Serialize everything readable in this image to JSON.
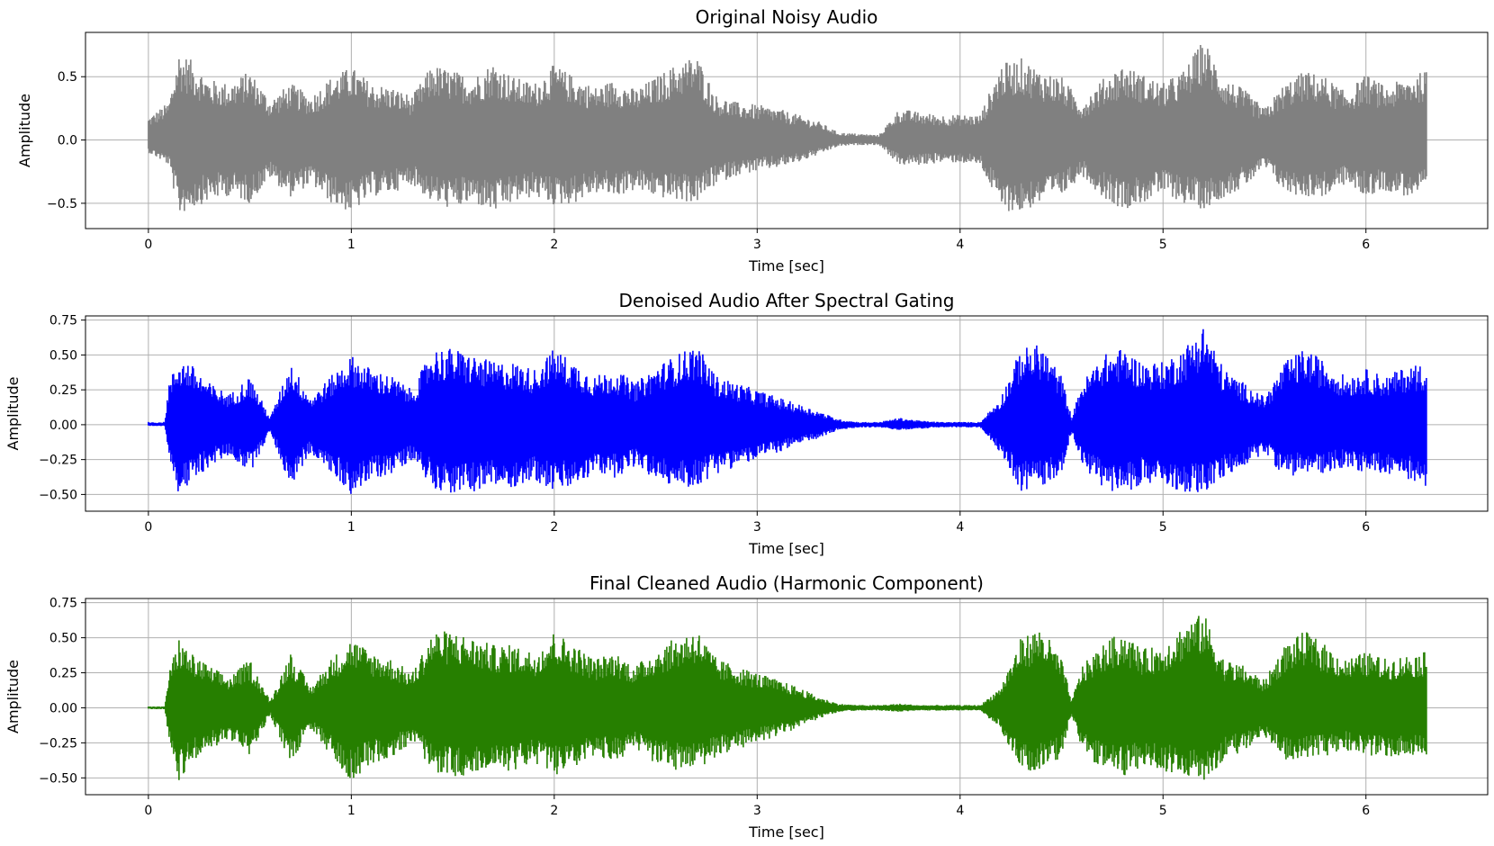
{
  "chart_data": [
    {
      "type": "line",
      "title": "Original Noisy Audio",
      "xlabel": "Time [sec]",
      "ylabel": "Amplitude",
      "xlim": [
        -0.31,
        6.6
      ],
      "ylim": [
        -0.7,
        0.85
      ],
      "xticks": [
        0,
        1,
        2,
        3,
        4,
        5,
        6
      ],
      "yticks": [
        -0.5,
        0.0,
        0.5
      ],
      "ytick_labels": [
        "−0.5",
        "0.0",
        "0.5"
      ],
      "grid": true,
      "color": "#808080",
      "series": [
        {
          "x": [
            0.0,
            0.1,
            0.15,
            0.2,
            0.3,
            0.4,
            0.5,
            0.6,
            0.7,
            0.8,
            0.9,
            1.0,
            1.1,
            1.2,
            1.3,
            1.4,
            1.5,
            1.6,
            1.7,
            1.8,
            1.9,
            2.0,
            2.1,
            2.2,
            2.3,
            2.4,
            2.5,
            2.6,
            2.7,
            2.8,
            2.9,
            3.0,
            3.1,
            3.2,
            3.3,
            3.4,
            3.5,
            3.6,
            3.7,
            3.8,
            3.9,
            4.0,
            4.1,
            4.2,
            4.3,
            4.4,
            4.5,
            4.6,
            4.7,
            4.8,
            4.9,
            5.0,
            5.1,
            5.2,
            5.3,
            5.4,
            5.5,
            5.6,
            5.7,
            5.8,
            5.9,
            6.0,
            6.1,
            6.2,
            6.3
          ],
          "upper": [
            0.18,
            0.3,
            0.7,
            0.65,
            0.48,
            0.45,
            0.55,
            0.32,
            0.45,
            0.35,
            0.5,
            0.58,
            0.45,
            0.42,
            0.35,
            0.6,
            0.55,
            0.5,
            0.62,
            0.5,
            0.45,
            0.6,
            0.5,
            0.42,
            0.48,
            0.4,
            0.5,
            0.6,
            0.68,
            0.35,
            0.3,
            0.28,
            0.25,
            0.2,
            0.15,
            0.06,
            0.05,
            0.04,
            0.25,
            0.22,
            0.2,
            0.2,
            0.2,
            0.6,
            0.65,
            0.55,
            0.5,
            0.3,
            0.48,
            0.6,
            0.52,
            0.45,
            0.55,
            0.8,
            0.5,
            0.4,
            0.25,
            0.45,
            0.55,
            0.5,
            0.38,
            0.52,
            0.42,
            0.5,
            0.55
          ],
          "lower": [
            -0.1,
            -0.2,
            -0.6,
            -0.55,
            -0.48,
            -0.44,
            -0.5,
            -0.3,
            -0.45,
            -0.35,
            -0.5,
            -0.58,
            -0.45,
            -0.42,
            -0.35,
            -0.5,
            -0.55,
            -0.5,
            -0.58,
            -0.5,
            -0.45,
            -0.52,
            -0.5,
            -0.42,
            -0.45,
            -0.4,
            -0.45,
            -0.48,
            -0.5,
            -0.35,
            -0.28,
            -0.25,
            -0.22,
            -0.18,
            -0.12,
            -0.05,
            -0.04,
            -0.04,
            -0.2,
            -0.2,
            -0.18,
            -0.18,
            -0.2,
            -0.55,
            -0.58,
            -0.5,
            -0.45,
            -0.28,
            -0.45,
            -0.55,
            -0.5,
            -0.42,
            -0.5,
            -0.55,
            -0.45,
            -0.38,
            -0.22,
            -0.42,
            -0.45,
            -0.45,
            -0.35,
            -0.45,
            -0.4,
            -0.45,
            -0.42
          ]
        }
      ]
    },
    {
      "type": "line",
      "title": "Denoised Audio After Spectral Gating",
      "xlabel": "Time [sec]",
      "ylabel": "Amplitude",
      "xlim": [
        -0.31,
        6.6
      ],
      "ylim": [
        -0.62,
        0.78
      ],
      "xticks": [
        0,
        1,
        2,
        3,
        4,
        5,
        6
      ],
      "yticks": [
        -0.5,
        -0.25,
        0.0,
        0.25,
        0.5,
        0.75
      ],
      "ytick_labels": [
        "−0.50",
        "−0.25",
        "0.00",
        "0.25",
        "0.50",
        "0.75"
      ],
      "grid": true,
      "color": "#0000ff",
      "series": [
        {
          "x": [
            0.0,
            0.08,
            0.1,
            0.15,
            0.2,
            0.3,
            0.4,
            0.5,
            0.55,
            0.6,
            0.7,
            0.8,
            0.9,
            1.0,
            1.1,
            1.2,
            1.3,
            1.4,
            1.5,
            1.6,
            1.7,
            1.8,
            1.9,
            2.0,
            2.1,
            2.2,
            2.3,
            2.4,
            2.5,
            2.6,
            2.7,
            2.8,
            2.9,
            3.0,
            3.1,
            3.2,
            3.3,
            3.4,
            3.5,
            3.6,
            3.7,
            3.8,
            3.9,
            4.0,
            4.1,
            4.2,
            4.3,
            4.4,
            4.5,
            4.55,
            4.6,
            4.7,
            4.8,
            4.9,
            5.0,
            5.1,
            5.2,
            5.3,
            5.4,
            5.5,
            5.6,
            5.7,
            5.8,
            5.9,
            6.0,
            6.1,
            6.2,
            6.3
          ],
          "upper": [
            0.02,
            0.02,
            0.3,
            0.48,
            0.45,
            0.3,
            0.22,
            0.35,
            0.2,
            0.05,
            0.45,
            0.2,
            0.35,
            0.5,
            0.4,
            0.35,
            0.25,
            0.55,
            0.55,
            0.5,
            0.45,
            0.45,
            0.4,
            0.55,
            0.45,
            0.35,
            0.4,
            0.3,
            0.42,
            0.5,
            0.58,
            0.35,
            0.3,
            0.25,
            0.2,
            0.15,
            0.1,
            0.04,
            0.02,
            0.02,
            0.05,
            0.03,
            0.02,
            0.02,
            0.02,
            0.2,
            0.55,
            0.58,
            0.35,
            0.05,
            0.3,
            0.5,
            0.55,
            0.45,
            0.45,
            0.55,
            0.72,
            0.4,
            0.3,
            0.2,
            0.45,
            0.55,
            0.45,
            0.35,
            0.4,
            0.35,
            0.42,
            0.45
          ],
          "lower": [
            -0.01,
            -0.01,
            -0.2,
            -0.5,
            -0.45,
            -0.3,
            -0.22,
            -0.35,
            -0.2,
            -0.05,
            -0.45,
            -0.2,
            -0.35,
            -0.5,
            -0.4,
            -0.35,
            -0.25,
            -0.45,
            -0.5,
            -0.48,
            -0.45,
            -0.45,
            -0.4,
            -0.48,
            -0.45,
            -0.35,
            -0.38,
            -0.3,
            -0.4,
            -0.45,
            -0.45,
            -0.35,
            -0.3,
            -0.25,
            -0.2,
            -0.15,
            -0.1,
            -0.04,
            -0.02,
            -0.02,
            -0.04,
            -0.03,
            -0.02,
            -0.02,
            -0.02,
            -0.2,
            -0.48,
            -0.45,
            -0.35,
            -0.05,
            -0.3,
            -0.45,
            -0.5,
            -0.42,
            -0.45,
            -0.48,
            -0.5,
            -0.38,
            -0.3,
            -0.2,
            -0.38,
            -0.35,
            -0.35,
            -0.3,
            -0.35,
            -0.35,
            -0.38,
            -0.5
          ]
        }
      ]
    },
    {
      "type": "line",
      "title": "Final Cleaned Audio (Harmonic Component)",
      "xlabel": "Time [sec]",
      "ylabel": "Amplitude",
      "xlim": [
        -0.31,
        6.6
      ],
      "ylim": [
        -0.62,
        0.78
      ],
      "xticks": [
        0,
        1,
        2,
        3,
        4,
        5,
        6
      ],
      "yticks": [
        -0.5,
        -0.25,
        0.0,
        0.25,
        0.5,
        0.75
      ],
      "ytick_labels": [
        "−0.50",
        "−0.25",
        "0.00",
        "0.25",
        "0.50",
        "0.75"
      ],
      "grid": true,
      "color": "#267f00",
      "series": [
        {
          "x": [
            0.0,
            0.08,
            0.1,
            0.15,
            0.2,
            0.3,
            0.4,
            0.5,
            0.55,
            0.6,
            0.7,
            0.8,
            0.9,
            1.0,
            1.1,
            1.2,
            1.3,
            1.4,
            1.5,
            1.6,
            1.7,
            1.8,
            1.9,
            2.0,
            2.1,
            2.2,
            2.3,
            2.4,
            2.5,
            2.6,
            2.7,
            2.8,
            2.9,
            3.0,
            3.1,
            3.2,
            3.3,
            3.4,
            3.5,
            3.6,
            3.7,
            3.8,
            3.9,
            4.0,
            4.1,
            4.2,
            4.3,
            4.4,
            4.5,
            4.55,
            4.6,
            4.7,
            4.8,
            4.9,
            5.0,
            5.1,
            5.2,
            5.3,
            5.4,
            5.5,
            5.6,
            5.7,
            5.8,
            5.9,
            6.0,
            6.1,
            6.2,
            6.3
          ],
          "upper": [
            0.01,
            0.01,
            0.25,
            0.5,
            0.4,
            0.3,
            0.22,
            0.35,
            0.2,
            0.05,
            0.4,
            0.15,
            0.35,
            0.5,
            0.4,
            0.35,
            0.25,
            0.55,
            0.55,
            0.5,
            0.45,
            0.45,
            0.4,
            0.55,
            0.45,
            0.35,
            0.4,
            0.3,
            0.42,
            0.5,
            0.57,
            0.35,
            0.3,
            0.25,
            0.2,
            0.15,
            0.08,
            0.03,
            0.02,
            0.02,
            0.03,
            0.02,
            0.02,
            0.02,
            0.02,
            0.15,
            0.5,
            0.58,
            0.35,
            0.05,
            0.3,
            0.45,
            0.55,
            0.42,
            0.45,
            0.6,
            0.68,
            0.35,
            0.3,
            0.2,
            0.45,
            0.55,
            0.45,
            0.35,
            0.4,
            0.35,
            0.38,
            0.4
          ],
          "lower": [
            -0.01,
            -0.01,
            -0.2,
            -0.52,
            -0.42,
            -0.3,
            -0.22,
            -0.35,
            -0.2,
            -0.05,
            -0.4,
            -0.15,
            -0.35,
            -0.52,
            -0.4,
            -0.35,
            -0.25,
            -0.45,
            -0.5,
            -0.48,
            -0.45,
            -0.45,
            -0.4,
            -0.48,
            -0.45,
            -0.35,
            -0.38,
            -0.3,
            -0.4,
            -0.45,
            -0.45,
            -0.35,
            -0.3,
            -0.25,
            -0.2,
            -0.15,
            -0.08,
            -0.03,
            -0.02,
            -0.02,
            -0.03,
            -0.02,
            -0.02,
            -0.02,
            -0.02,
            -0.15,
            -0.45,
            -0.45,
            -0.35,
            -0.05,
            -0.3,
            -0.45,
            -0.5,
            -0.42,
            -0.45,
            -0.48,
            -0.52,
            -0.38,
            -0.3,
            -0.2,
            -0.38,
            -0.35,
            -0.35,
            -0.3,
            -0.35,
            -0.35,
            -0.35,
            -0.35
          ]
        }
      ]
    }
  ]
}
